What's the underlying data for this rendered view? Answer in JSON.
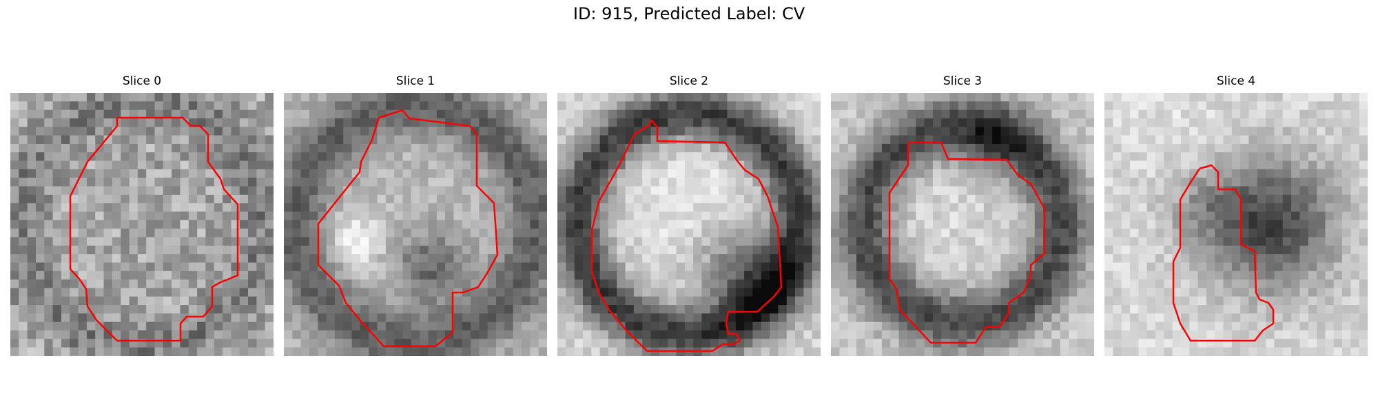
{
  "figure": {
    "title": "ID: 915, Predicted Label: CV"
  },
  "slices": [
    {
      "title": "Slice 0"
    },
    {
      "title": "Slice 1"
    },
    {
      "title": "Slice 2"
    },
    {
      "title": "Slice 3"
    },
    {
      "title": "Slice 4"
    }
  ],
  "colors": {
    "contour": "#ff0000",
    "background": "#ffffff"
  }
}
